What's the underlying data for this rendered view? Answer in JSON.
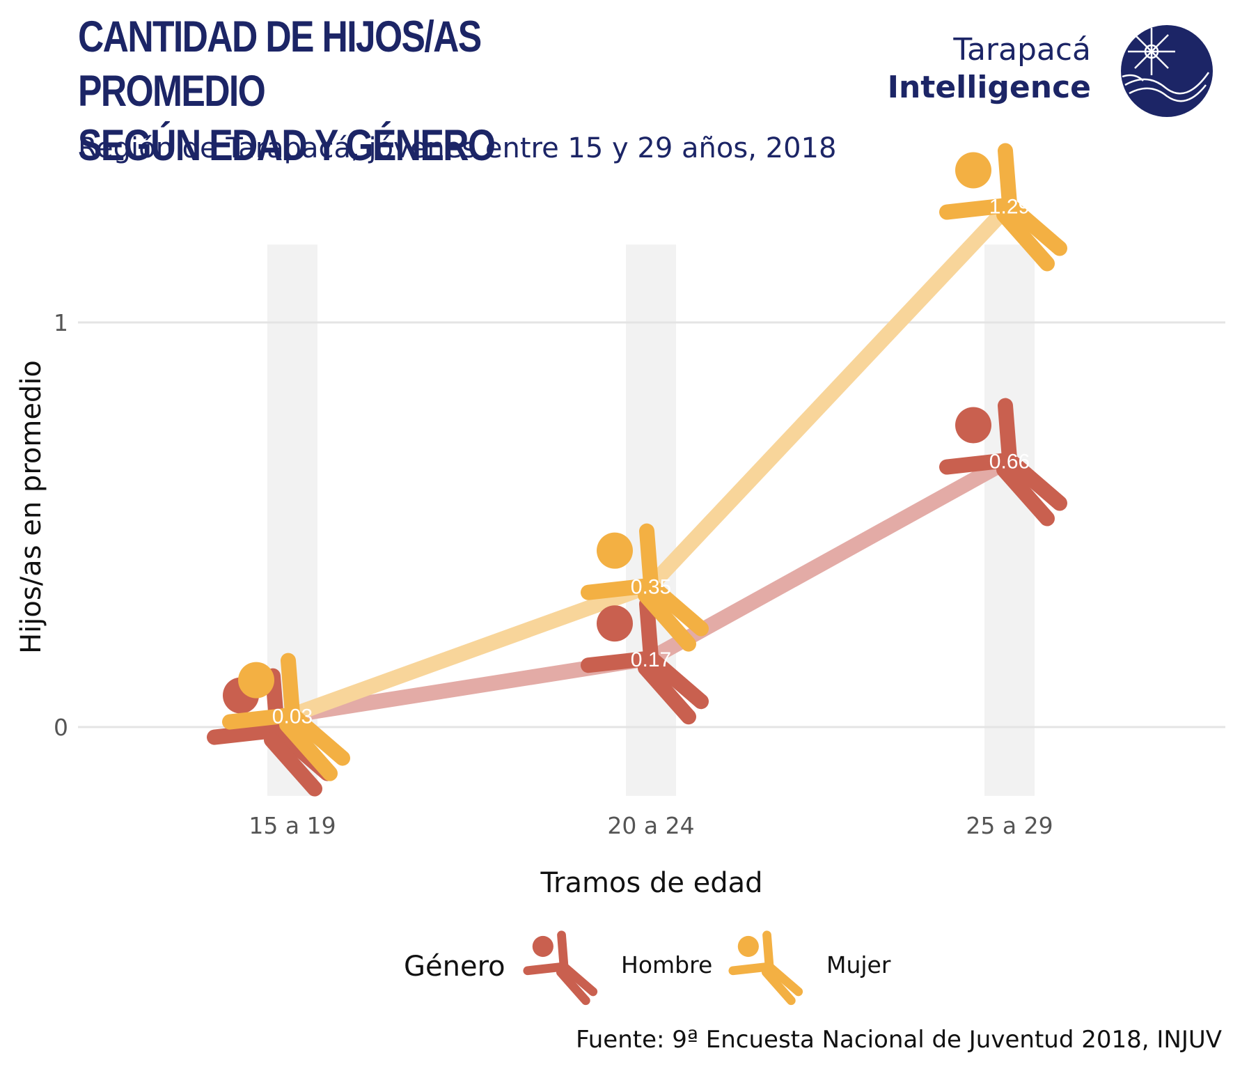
{
  "header": {
    "title": "CANTIDAD DE HIJOS/AS PROMEDIO\nSEGÚN EDAD Y GÉNERO",
    "subtitle": "Región de Tarapacá, jóvenes entre 15 y 29 años, 2018"
  },
  "logo": {
    "line1": "Tarapacá",
    "line2": "Intelligence",
    "color": "#1c2566"
  },
  "legend": {
    "title": "Género",
    "items": [
      "Hombre",
      "Mujer"
    ]
  },
  "footer": {
    "source": "Fuente: 9ª Encuesta Nacional de Juventud 2018, INJUV"
  },
  "chart_data": {
    "type": "line",
    "categories": [
      "15 a 19",
      "20 a 24",
      "25 a 29"
    ],
    "series": [
      {
        "name": "Hombre",
        "values": [
          0.03,
          0.17,
          0.66
        ],
        "labels": [
          "",
          "0.17",
          "0.66"
        ],
        "color": "#c9604f",
        "line_color": "#e3aba6"
      },
      {
        "name": "Mujer",
        "values": [
          0.03,
          0.35,
          1.29
        ],
        "labels": [
          "0.03",
          "0.35",
          "1.29"
        ],
        "color": "#f3b043",
        "line_color": "#f8d59a"
      }
    ],
    "xlabel": "Tramos de edad",
    "ylabel": "Hijos/as en promedio",
    "yticks": [
      0,
      1
    ],
    "ylim": [
      -0.17,
      1.27
    ],
    "grid": true,
    "marker": "person-icon",
    "legend_position": "bottom"
  }
}
